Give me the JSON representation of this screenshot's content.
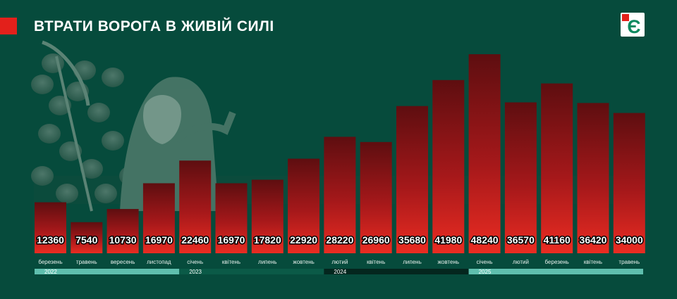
{
  "title": "ВТРАТИ ВОРОГА В ЖИВІЙ СИЛІ",
  "colors": {
    "background": "#064b3c",
    "accent_red": "#e3201b",
    "bar_top": "#5e0e10",
    "bar_bottom": "#ea2c22",
    "timeline_light": "#5fbfae",
    "timeline_dark": "#04261e",
    "logo_green": "#0d8a5f"
  },
  "logo": {
    "icon": "letter-e-logo-icon",
    "letter": "Є"
  },
  "illustration": {
    "icon": "grim-reaper-skulls-illustration"
  },
  "chart_data": {
    "type": "bar",
    "categories": [
      "березень",
      "травень",
      "вересень",
      "листопад",
      "січень",
      "квітень",
      "липень",
      "жовтень",
      "лютий",
      "квітень",
      "липень",
      "жовтень",
      "січень",
      "лютий",
      "березень",
      "квітень",
      "травень"
    ],
    "values": [
      12360,
      7540,
      10730,
      16970,
      22460,
      16970,
      17820,
      22920,
      28220,
      26960,
      35680,
      41980,
      48240,
      36570,
      41160,
      36420,
      34000
    ],
    "value_labels": [
      "12360",
      "7540",
      "10730",
      "16970",
      "22460",
      "16970",
      "17820",
      "22920",
      "28220",
      "26960",
      "35680",
      "41980",
      "48240",
      "36570",
      "41160",
      "36420",
      "34000"
    ],
    "years": [
      {
        "label": "2022",
        "start": 0,
        "end": 3,
        "tone": "light"
      },
      {
        "label": "2023",
        "start": 4,
        "end": 7,
        "tone": "dark"
      },
      {
        "label": "2024",
        "start": 8,
        "end": 11,
        "tone": "darker"
      },
      {
        "label": "2025",
        "start": 12,
        "end": 16,
        "tone": "light"
      }
    ],
    "title": "ВТРАТИ ВОРОГА В ЖИВІЙ СИЛІ",
    "xlabel": "",
    "ylabel": "",
    "ylim": [
      0,
      52000
    ],
    "grid": false,
    "legend": "none"
  }
}
